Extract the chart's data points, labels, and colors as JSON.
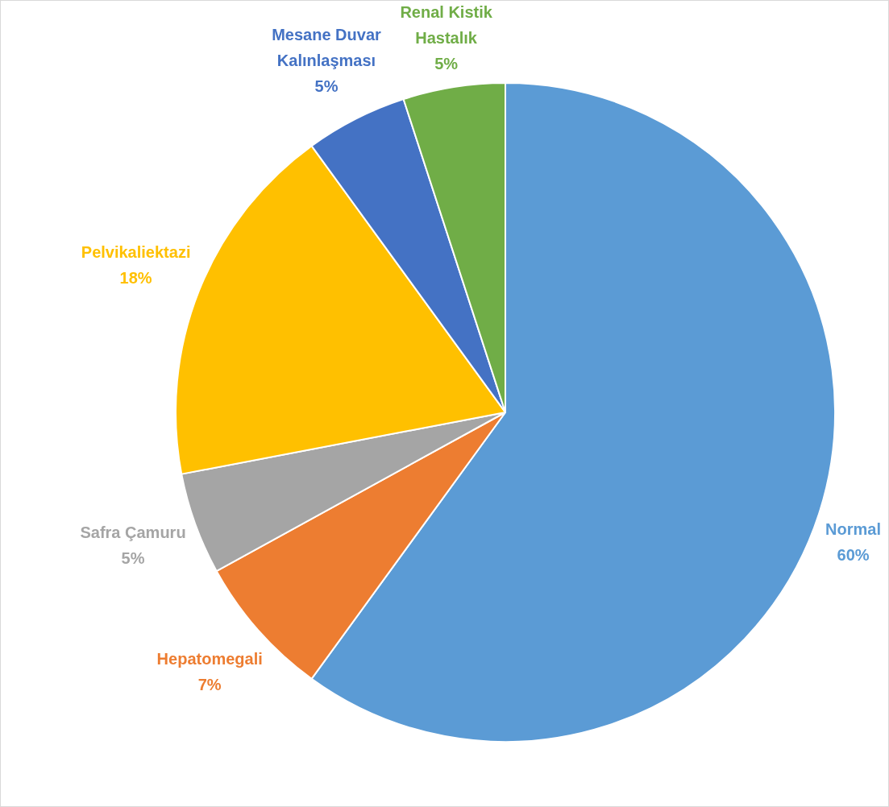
{
  "chart_data": {
    "type": "pie",
    "categories": [
      "Normal",
      "Hepatomegali",
      "Safra Çamuru",
      "Pelvikaliektazi",
      "Mesane Duvar Kalınlaşması",
      "Renal Kistik Hastalık"
    ],
    "values": [
      60,
      7,
      5,
      18,
      5,
      5
    ],
    "value_labels": [
      "60%",
      "7%",
      "5%",
      "18%",
      "5%",
      "5%"
    ],
    "colors": [
      "#5b9bd5",
      "#ed7d31",
      "#a5a5a5",
      "#ffc000",
      "#4472c4",
      "#70ad47"
    ],
    "legend": false
  }
}
